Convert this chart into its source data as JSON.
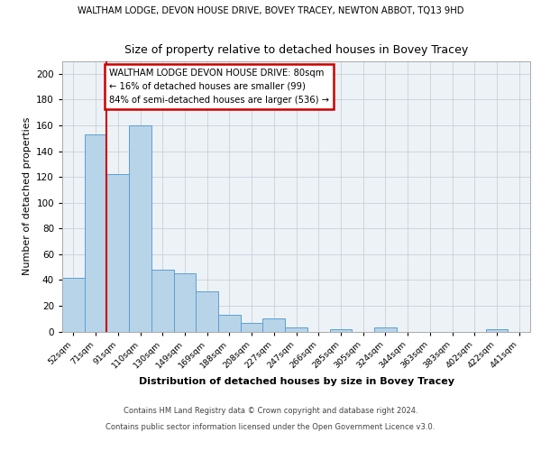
{
  "title_top": "WALTHAM LODGE, DEVON HOUSE DRIVE, BOVEY TRACEY, NEWTON ABBOT, TQ13 9HD",
  "title_main": "Size of property relative to detached houses in Bovey Tracey",
  "xlabel": "Distribution of detached houses by size in Bovey Tracey",
  "ylabel": "Number of detached properties",
  "bar_labels": [
    "52sqm",
    "71sqm",
    "91sqm",
    "110sqm",
    "130sqm",
    "149sqm",
    "169sqm",
    "188sqm",
    "208sqm",
    "227sqm",
    "247sqm",
    "266sqm",
    "285sqm",
    "305sqm",
    "324sqm",
    "344sqm",
    "363sqm",
    "383sqm",
    "402sqm",
    "422sqm",
    "441sqm"
  ],
  "bar_values": [
    42,
    153,
    122,
    160,
    48,
    45,
    31,
    13,
    7,
    10,
    3,
    0,
    2,
    0,
    3,
    0,
    0,
    0,
    0,
    2,
    0
  ],
  "bar_color": "#b8d4e8",
  "bar_edge_color": "#5a9fd4",
  "vline_x": 1.5,
  "vline_color": "#cc0000",
  "annotation_title": "WALTHAM LODGE DEVON HOUSE DRIVE: 80sqm",
  "annotation_line1": "← 16% of detached houses are smaller (99)",
  "annotation_line2": "84% of semi-detached houses are larger (536) →",
  "annotation_box_color": "#ffffff",
  "annotation_box_edge": "#cc0000",
  "ylim": [
    0,
    210
  ],
  "yticks": [
    0,
    20,
    40,
    60,
    80,
    100,
    120,
    140,
    160,
    180,
    200
  ],
  "bg_color": "#edf2f7",
  "grid_color": "#c8d0d8",
  "footer1": "Contains HM Land Registry data © Crown copyright and database right 2024.",
  "footer2": "Contains public sector information licensed under the Open Government Licence v3.0."
}
